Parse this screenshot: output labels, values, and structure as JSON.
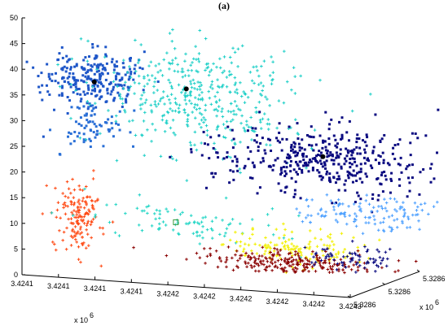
{
  "chart_data": {
    "type": "scatter",
    "title": "(a)",
    "projection": "3d",
    "grid": false,
    "legend": "none",
    "x_axis": {
      "tick_labels": [
        "3.4241",
        "3.4241",
        "3.4241",
        "3.4241",
        "3.4242",
        "3.4242",
        "3.4242",
        "3.4242",
        "3.4242",
        "3.4243"
      ],
      "exponent_label": "x 10",
      "exponent_power": "6",
      "range": [
        3424090,
        3424275
      ]
    },
    "y_axis": {
      "tick_labels": [
        "5.3286",
        "5.3286",
        "5.3286"
      ],
      "exponent_label": "x 10",
      "exponent_power": "6",
      "range": [
        5328580,
        5328620
      ]
    },
    "z_axis": {
      "tick_labels": [
        "0",
        "5",
        "10",
        "15",
        "20",
        "25",
        "30",
        "35",
        "40",
        "45",
        "50"
      ],
      "range": [
        0,
        50
      ]
    },
    "series": [
      {
        "color": "#1e56c8",
        "marker": "square",
        "center": [
          3424121,
          5328590,
          37.5
        ],
        "spread": [
          14,
          4,
          2.6
        ],
        "count": 260
      },
      {
        "color": "#2a6fd6",
        "marker": "square",
        "center": [
          3424118,
          5328590,
          28.5
        ],
        "spread": [
          9,
          4,
          2.2
        ],
        "count": 70
      },
      {
        "color": "#20d0c8",
        "marker": "cross",
        "center": [
          3424178,
          5328592,
          35
        ],
        "spread": [
          30,
          5,
          5
        ],
        "count": 430
      },
      {
        "color": "#0a0a80",
        "marker": "square",
        "center": [
          3424243,
          5328598,
          24
        ],
        "spread": [
          30,
          6,
          3.2
        ],
        "count": 420
      },
      {
        "color": "#4da0ff",
        "marker": "cross",
        "center": [
          3424262,
          5328604,
          13
        ],
        "spread": [
          22,
          5,
          1.6
        ],
        "count": 130
      },
      {
        "color": "#ff4a14",
        "marker": "cross",
        "center": [
          3424113,
          5328590,
          10.5
        ],
        "spread": [
          6,
          3,
          3.2
        ],
        "count": 150
      },
      {
        "color": "#24d6c6",
        "marker": "cross",
        "center": [
          3424170,
          5328593,
          10.5
        ],
        "spread": [
          28,
          4,
          1.6
        ],
        "count": 90
      },
      {
        "color": "#f2f000",
        "marker": "cross",
        "center": [
          3424228,
          5328597,
          6
        ],
        "spread": [
          20,
          4,
          1.6
        ],
        "count": 140
      },
      {
        "color": "#8a0000",
        "marker": "cross",
        "center": [
          3424228,
          5328596,
          3.2
        ],
        "spread": [
          26,
          4,
          1.2
        ],
        "count": 260
      },
      {
        "color": "#0a0a80",
        "marker": "cross",
        "center": [
          3424250,
          5328605,
          3.8
        ],
        "spread": [
          12,
          3,
          1.1
        ],
        "count": 70
      }
    ],
    "centroids": [
      {
        "marker": "dot",
        "color": "#000000",
        "point": [
          3424121,
          5328590,
          37
        ]
      },
      {
        "marker": "dot",
        "color": "#000000",
        "point": [
          3424167,
          5328596,
          36
        ]
      },
      {
        "marker": "dot",
        "color": "#000000",
        "point": [
          3424243,
          5328597,
          24.5
        ]
      },
      {
        "marker": "square-outline",
        "color": "#3c9a3c",
        "point": [
          3424165,
          5328592,
          10.5
        ]
      }
    ]
  }
}
